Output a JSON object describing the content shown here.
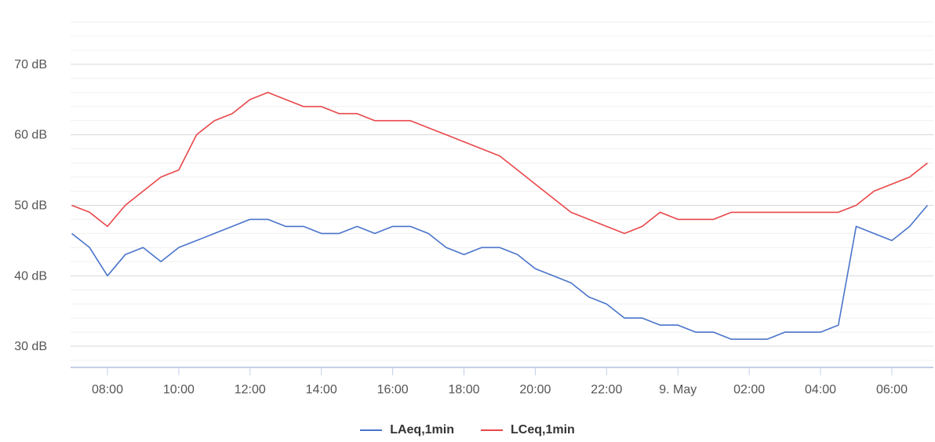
{
  "chart_data": {
    "type": "line",
    "ylim": [
      27,
      78
    ],
    "xlim": [
      "8 May 06:58",
      "9 May 07:10"
    ],
    "y_ticks": [
      {
        "value": 30,
        "label": "30 dB"
      },
      {
        "value": 40,
        "label": "40 dB"
      },
      {
        "value": 50,
        "label": "50 dB"
      },
      {
        "value": 60,
        "label": "60 dB"
      },
      {
        "value": 70,
        "label": "70 dB"
      }
    ],
    "x_ticks": [
      {
        "time": "8 May 08:00",
        "label": "08:00"
      },
      {
        "time": "8 May 10:00",
        "label": "10:00"
      },
      {
        "time": "8 May 12:00",
        "label": "12:00"
      },
      {
        "time": "8 May 14:00",
        "label": "14:00"
      },
      {
        "time": "8 May 16:00",
        "label": "16:00"
      },
      {
        "time": "8 May 18:00",
        "label": "18:00"
      },
      {
        "time": "8 May 20:00",
        "label": "20:00"
      },
      {
        "time": "8 May 22:00",
        "label": "22:00"
      },
      {
        "time": "9 May 00:00",
        "label": "9. May"
      },
      {
        "time": "9 May 02:00",
        "label": "02:00"
      },
      {
        "time": "9 May 04:00",
        "label": "04:00"
      },
      {
        "time": "9 May 06:00",
        "label": "06:00"
      }
    ],
    "grid": true,
    "legend_position": "bottom",
    "series": [
      {
        "name": "LAeq,1min",
        "color": "#4a74c9",
        "points": [
          {
            "x": "8 May 07:00",
            "y": 46
          },
          {
            "x": "8 May 07:30",
            "y": 44
          },
          {
            "x": "8 May 08:00",
            "y": 40
          },
          {
            "x": "8 May 08:30",
            "y": 43
          },
          {
            "x": "8 May 09:00",
            "y": 44
          },
          {
            "x": "8 May 09:30",
            "y": 42
          },
          {
            "x": "8 May 10:00",
            "y": 44
          },
          {
            "x": "8 May 10:30",
            "y": 45
          },
          {
            "x": "8 May 11:00",
            "y": 46
          },
          {
            "x": "8 May 11:30",
            "y": 47
          },
          {
            "x": "8 May 12:00",
            "y": 48
          },
          {
            "x": "8 May 12:30",
            "y": 48
          },
          {
            "x": "8 May 13:00",
            "y": 47
          },
          {
            "x": "8 May 13:30",
            "y": 47
          },
          {
            "x": "8 May 14:00",
            "y": 46
          },
          {
            "x": "8 May 14:30",
            "y": 46
          },
          {
            "x": "8 May 15:00",
            "y": 47
          },
          {
            "x": "8 May 15:30",
            "y": 46
          },
          {
            "x": "8 May 16:00",
            "y": 47
          },
          {
            "x": "8 May 16:30",
            "y": 47
          },
          {
            "x": "8 May 17:00",
            "y": 46
          },
          {
            "x": "8 May 17:30",
            "y": 44
          },
          {
            "x": "8 May 18:00",
            "y": 43
          },
          {
            "x": "8 May 18:30",
            "y": 44
          },
          {
            "x": "8 May 19:00",
            "y": 44
          },
          {
            "x": "8 May 19:30",
            "y": 43
          },
          {
            "x": "8 May 20:00",
            "y": 41
          },
          {
            "x": "8 May 20:30",
            "y": 40
          },
          {
            "x": "8 May 21:00",
            "y": 39
          },
          {
            "x": "8 May 21:30",
            "y": 37
          },
          {
            "x": "8 May 22:00",
            "y": 36
          },
          {
            "x": "8 May 22:30",
            "y": 34
          },
          {
            "x": "8 May 23:00",
            "y": 34
          },
          {
            "x": "8 May 23:30",
            "y": 33
          },
          {
            "x": "9 May 00:00",
            "y": 33
          },
          {
            "x": "9 May 00:30",
            "y": 32
          },
          {
            "x": "9 May 01:00",
            "y": 32
          },
          {
            "x": "9 May 01:30",
            "y": 31
          },
          {
            "x": "9 May 02:00",
            "y": 31
          },
          {
            "x": "9 May 02:30",
            "y": 31
          },
          {
            "x": "9 May 03:00",
            "y": 32
          },
          {
            "x": "9 May 03:30",
            "y": 32
          },
          {
            "x": "9 May 04:00",
            "y": 32
          },
          {
            "x": "9 May 04:30",
            "y": 33
          },
          {
            "x": "9 May 05:00",
            "y": 47
          },
          {
            "x": "9 May 05:30",
            "y": 46
          },
          {
            "x": "9 May 06:00",
            "y": 45
          },
          {
            "x": "9 May 06:30",
            "y": 47
          },
          {
            "x": "9 May 07:00",
            "y": 50
          }
        ]
      },
      {
        "name": "LCeq,1min",
        "color": "#e8474a",
        "points": [
          {
            "x": "8 May 07:00",
            "y": 50
          },
          {
            "x": "8 May 07:30",
            "y": 49
          },
          {
            "x": "8 May 08:00",
            "y": 47
          },
          {
            "x": "8 May 08:30",
            "y": 50
          },
          {
            "x": "8 May 09:00",
            "y": 52
          },
          {
            "x": "8 May 09:30",
            "y": 54
          },
          {
            "x": "8 May 10:00",
            "y": 55
          },
          {
            "x": "8 May 10:30",
            "y": 60
          },
          {
            "x": "8 May 11:00",
            "y": 62
          },
          {
            "x": "8 May 11:30",
            "y": 63
          },
          {
            "x": "8 May 12:00",
            "y": 65
          },
          {
            "x": "8 May 12:30",
            "y": 66
          },
          {
            "x": "8 May 13:00",
            "y": 65
          },
          {
            "x": "8 May 13:30",
            "y": 64
          },
          {
            "x": "8 May 14:00",
            "y": 64
          },
          {
            "x": "8 May 14:30",
            "y": 63
          },
          {
            "x": "8 May 15:00",
            "y": 63
          },
          {
            "x": "8 May 15:30",
            "y": 62
          },
          {
            "x": "8 May 16:00",
            "y": 62
          },
          {
            "x": "8 May 16:30",
            "y": 62
          },
          {
            "x": "8 May 17:00",
            "y": 61
          },
          {
            "x": "8 May 17:30",
            "y": 60
          },
          {
            "x": "8 May 18:00",
            "y": 59
          },
          {
            "x": "8 May 18:30",
            "y": 58
          },
          {
            "x": "8 May 19:00",
            "y": 57
          },
          {
            "x": "8 May 19:30",
            "y": 55
          },
          {
            "x": "8 May 20:00",
            "y": 53
          },
          {
            "x": "8 May 20:30",
            "y": 51
          },
          {
            "x": "8 May 21:00",
            "y": 49
          },
          {
            "x": "8 May 21:30",
            "y": 48
          },
          {
            "x": "8 May 22:00",
            "y": 47
          },
          {
            "x": "8 May 22:30",
            "y": 46
          },
          {
            "x": "8 May 23:00",
            "y": 47
          },
          {
            "x": "8 May 23:30",
            "y": 49
          },
          {
            "x": "9 May 00:00",
            "y": 48
          },
          {
            "x": "9 May 00:30",
            "y": 48
          },
          {
            "x": "9 May 01:00",
            "y": 48
          },
          {
            "x": "9 May 01:30",
            "y": 49
          },
          {
            "x": "9 May 02:00",
            "y": 49
          },
          {
            "x": "9 May 02:30",
            "y": 49
          },
          {
            "x": "9 May 03:00",
            "y": 49
          },
          {
            "x": "9 May 03:30",
            "y": 49
          },
          {
            "x": "9 May 04:00",
            "y": 49
          },
          {
            "x": "9 May 04:30",
            "y": 49
          },
          {
            "x": "9 May 05:00",
            "y": 50
          },
          {
            "x": "9 May 05:30",
            "y": 52
          },
          {
            "x": "9 May 06:00",
            "y": 53
          },
          {
            "x": "9 May 06:30",
            "y": 54
          },
          {
            "x": "9 May 07:00",
            "y": 56
          }
        ]
      }
    ]
  }
}
